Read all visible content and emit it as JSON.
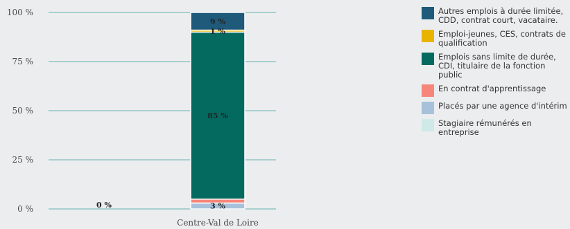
{
  "chart_data": {
    "type": "bar",
    "stacked": true,
    "categories": [
      "",
      "Centre-Val de Loire"
    ],
    "ylim": [
      0,
      100
    ],
    "yticks": [
      "0 %",
      "25 %",
      "50 %",
      "75 %",
      "100 %"
    ],
    "grid": true,
    "legend_position": "right",
    "series": [
      {
        "name": "Placés par une agence d'intérim",
        "color": "#a8c1da",
        "values": [
          0,
          3
        ],
        "labels": [
          "0 %",
          "3 %"
        ]
      },
      {
        "name": "En contrat d'apprentissage",
        "color": "#f7867a",
        "values": [
          0,
          2
        ],
        "labels": [
          "",
          ""
        ]
      },
      {
        "name": "Stagiaire rémunérés en entreprise",
        "color": "#cfe9e8",
        "values": [
          0,
          0
        ],
        "labels": [
          "",
          ""
        ]
      },
      {
        "name": "Emplois sans limite de durée, CDI, titulaire de la fonction public",
        "color": "#046a60",
        "values": [
          0,
          85
        ],
        "labels": [
          "",
          "85 %"
        ]
      },
      {
        "name": "Emploi-jeunes, CES, contrats de qualification",
        "color": "#e8b400",
        "values": [
          0,
          1
        ],
        "labels": [
          "",
          "1 %"
        ]
      },
      {
        "name": "Autres emplois à durée limitée, CDD, contrat court, vacataire.",
        "color": "#1f5a7a",
        "values": [
          0,
          9
        ],
        "labels": [
          "",
          "9 %"
        ]
      }
    ]
  },
  "legend": [
    {
      "label": "Autres emplois à durée limitée, CDD, contrat court, vacataire.",
      "color": "#1f5a7a"
    },
    {
      "label": "Emploi-jeunes, CES, contrats de qualification",
      "color": "#e8b400"
    },
    {
      "label": "Emplois sans limite de durée, CDI, titulaire de la fonction public",
      "color": "#046a60"
    },
    {
      "label": "En contrat d'apprentissage",
      "color": "#f7867a"
    },
    {
      "label": "Placés par une agence d'intérim",
      "color": "#a8c1da"
    },
    {
      "label": "Stagiaire rémunérés en entreprise",
      "color": "#cfe9e8"
    }
  ]
}
